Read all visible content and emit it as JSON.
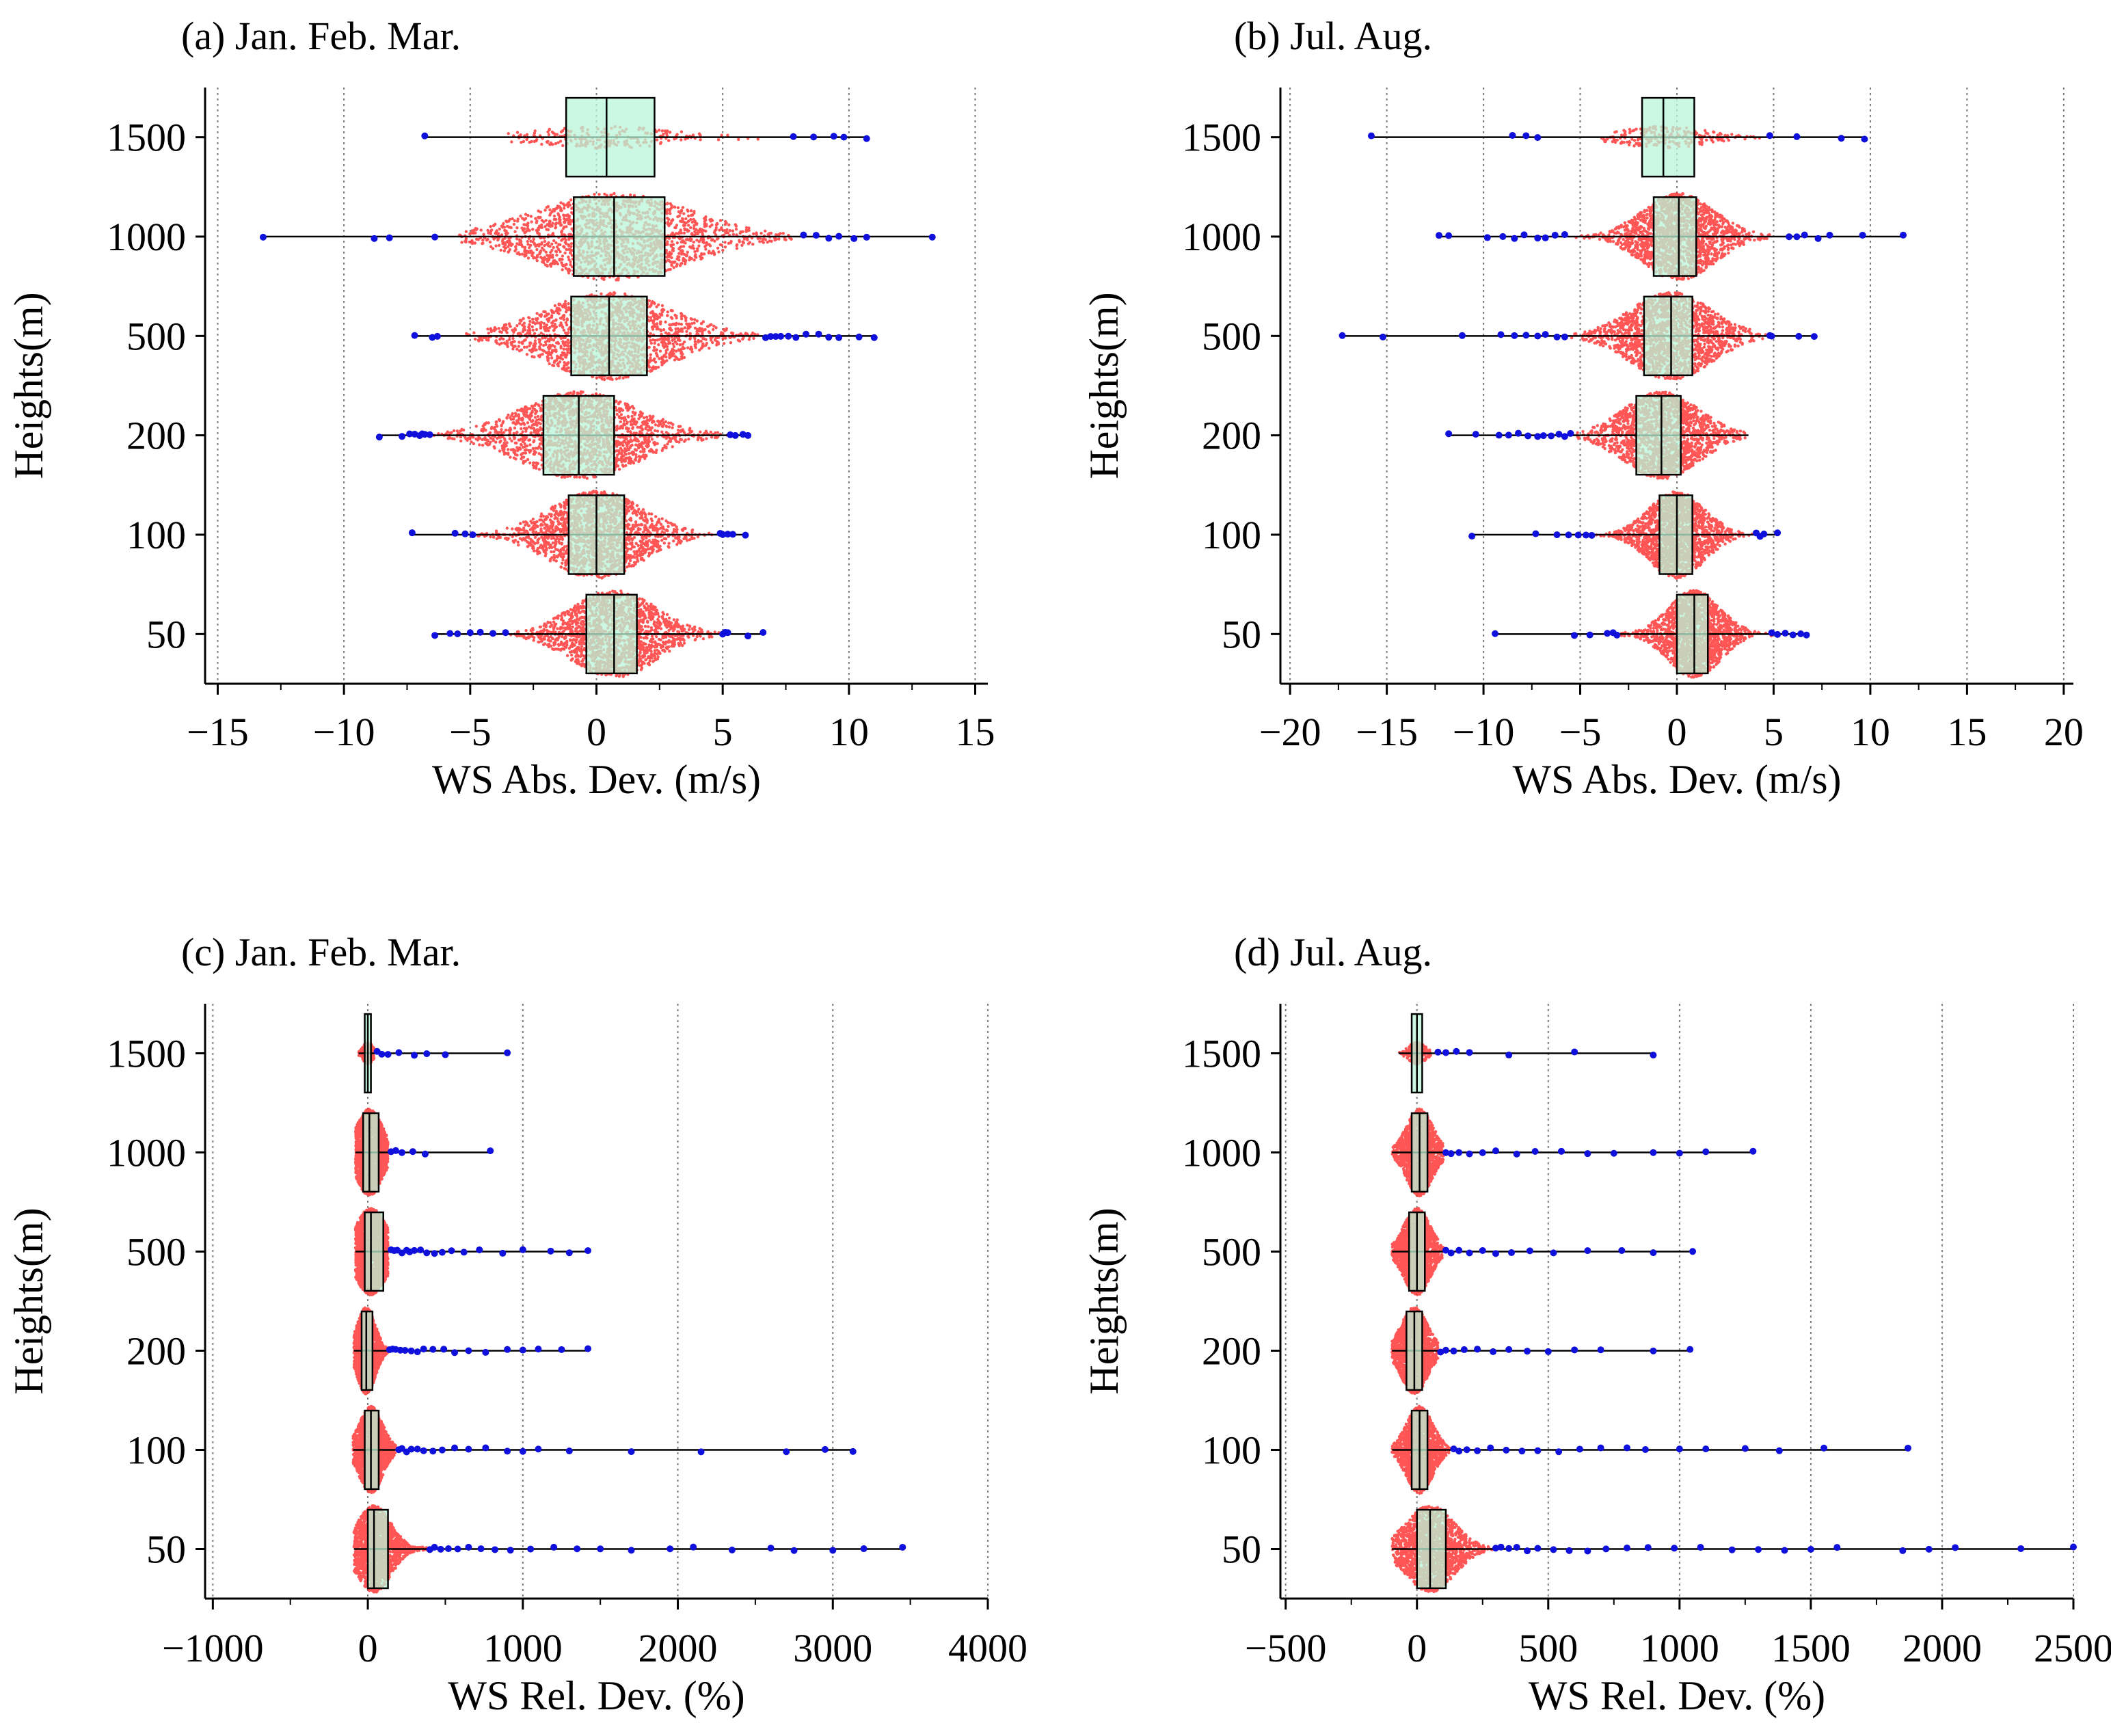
{
  "figure": {
    "y_label": "Heights(m)",
    "colors": {
      "bulk_points": "#ff2a2a",
      "outlier_points": "#1010dd",
      "box_fill": "#b8f5d8",
      "box_stroke": "#000000",
      "grid": "#7a7a7a"
    }
  },
  "chart_data": [
    {
      "id": "a",
      "type": "box-swarm",
      "orientation": "horizontal",
      "title": "(a) Jan. Feb. Mar.",
      "xlabel": "WS Abs. Dev. (m/s)",
      "ylabel": "Heights(m)",
      "xlim": [
        -15.5,
        15.5
      ],
      "xticks": [
        -15,
        -10,
        -5,
        0,
        5,
        10,
        15
      ],
      "xtick_labels": [
        "−15",
        "−10",
        "−5",
        "0",
        "5",
        "10",
        "15"
      ],
      "categories": [
        "1500",
        "1000",
        "500",
        "200",
        "100",
        "50"
      ],
      "series": [
        {
          "height": "1500",
          "min": -6.8,
          "q1": -1.2,
          "median": 0.4,
          "q3": 2.3,
          "max": 10.7,
          "bulk": [
            -3.5,
            6.5
          ],
          "density": "low",
          "outliers": [
            -6.8,
            7.8,
            8.6,
            9.4,
            9.8,
            10.7
          ]
        },
        {
          "height": "1000",
          "min": -13.2,
          "q1": -0.9,
          "median": 0.7,
          "q3": 2.7,
          "max": 13.3,
          "bulk": [
            -5.5,
            8.0
          ],
          "density": "high",
          "outliers": [
            -13.2,
            -8.8,
            -8.2,
            -6.4,
            8.2,
            8.7,
            9.2,
            9.6,
            10.2,
            10.7,
            13.3
          ]
        },
        {
          "height": "500",
          "min": -7.2,
          "q1": -1.0,
          "median": 0.5,
          "q3": 2.0,
          "max": 11.0,
          "bulk": [
            -5.2,
            6.6
          ],
          "density": "high",
          "outliers": [
            -7.2,
            -6.5,
            -6.3,
            6.7,
            6.9,
            7.1,
            7.3,
            7.6,
            7.9,
            8.3,
            8.8,
            9.2,
            9.6,
            10.4,
            11.0
          ]
        },
        {
          "height": "200",
          "min": -8.6,
          "q1": -2.1,
          "median": -0.7,
          "q3": 0.7,
          "max": 6.0,
          "bulk": [
            -6.5,
            5.2
          ],
          "density": "high",
          "outliers": [
            -8.6,
            -7.7,
            -7.4,
            -7.2,
            -7.0,
            -6.9,
            -6.8,
            -6.6,
            5.3,
            5.5,
            5.8,
            6.0
          ]
        },
        {
          "height": "100",
          "min": -7.3,
          "q1": -1.1,
          "median": 0.0,
          "q3": 1.1,
          "max": 5.9,
          "bulk": [
            -4.8,
            4.8
          ],
          "density": "high",
          "outliers": [
            -7.3,
            -5.6,
            -5.2,
            -4.9,
            4.9,
            5.0,
            5.2,
            5.4,
            5.9
          ]
        },
        {
          "height": "50",
          "min": -6.4,
          "q1": -0.4,
          "median": 0.7,
          "q3": 1.6,
          "max": 6.6,
          "bulk": [
            -3.4,
            4.9
          ],
          "density": "high",
          "outliers": [
            -6.4,
            -5.8,
            -5.5,
            -5.0,
            -4.6,
            -4.1,
            -3.6,
            5.0,
            5.1,
            5.2,
            6.0,
            6.6
          ]
        }
      ]
    },
    {
      "id": "b",
      "type": "box-swarm",
      "orientation": "horizontal",
      "title": "(b) Jul. Aug.",
      "xlabel": "WS Abs. Dev. (m/s)",
      "ylabel": "Heights(m)",
      "xlim": [
        -20.5,
        20.5
      ],
      "xticks": [
        -20,
        -15,
        -10,
        -5,
        0,
        5,
        10,
        15,
        20
      ],
      "xtick_labels": [
        "−20",
        "−15",
        "−10",
        "−5",
        "0",
        "5",
        "10",
        "15",
        "20"
      ],
      "categories": [
        "1500",
        "1000",
        "500",
        "200",
        "100",
        "50"
      ],
      "series": [
        {
          "height": "1500",
          "min": -15.8,
          "q1": -1.8,
          "median": -0.7,
          "q3": 0.9,
          "max": 9.7,
          "bulk": [
            -4.0,
            4.5
          ],
          "density": "low",
          "outliers": [
            -15.8,
            -8.5,
            -7.8,
            -7.2,
            4.8,
            6.2,
            8.5,
            9.7
          ]
        },
        {
          "height": "1000",
          "min": -12.3,
          "q1": -1.2,
          "median": 0.1,
          "q3": 1.0,
          "max": 11.7,
          "bulk": [
            -5.5,
            5.5
          ],
          "density": "high",
          "outliers": [
            -12.3,
            -11.8,
            -9.8,
            -9.0,
            -8.4,
            -7.9,
            -7.2,
            -6.8,
            -6.3,
            -5.8,
            5.8,
            6.2,
            6.6,
            7.3,
            7.9,
            9.6,
            11.7
          ]
        },
        {
          "height": "500",
          "min": -17.3,
          "q1": -1.7,
          "median": -0.3,
          "q3": 0.8,
          "max": 7.1,
          "bulk": [
            -5.5,
            4.6
          ],
          "density": "high",
          "outliers": [
            -17.3,
            -15.2,
            -11.1,
            -9.1,
            -8.4,
            -7.8,
            -7.2,
            -6.8,
            -6.2,
            -5.8,
            4.8,
            4.9,
            6.3,
            7.1
          ]
        },
        {
          "height": "200",
          "min": -11.8,
          "q1": -2.1,
          "median": -0.8,
          "q3": 0.2,
          "max": 3.7,
          "bulk": [
            -5.3,
            3.6
          ],
          "density": "high",
          "outliers": [
            -11.8,
            -10.4,
            -9.2,
            -8.7,
            -8.2,
            -7.7,
            -7.2,
            -6.9,
            -6.5,
            -6.1,
            -5.8,
            -5.5
          ]
        },
        {
          "height": "100",
          "min": -10.6,
          "q1": -0.9,
          "median": 0.0,
          "q3": 0.8,
          "max": 5.2,
          "bulk": [
            -4.2,
            4.0
          ],
          "density": "high",
          "outliers": [
            -10.6,
            -7.3,
            -6.2,
            -5.6,
            -5.1,
            -4.7,
            -4.4,
            4.1,
            4.3,
            4.5,
            5.2
          ]
        },
        {
          "height": "50",
          "min": -9.4,
          "q1": 0.0,
          "median": 0.9,
          "q3": 1.6,
          "max": 6.7,
          "bulk": [
            -2.9,
            4.9
          ],
          "density": "high",
          "outliers": [
            -9.4,
            -5.3,
            -4.5,
            -3.6,
            -3.3,
            -3.1,
            4.9,
            5.2,
            5.6,
            6.0,
            6.4,
            6.7
          ]
        }
      ]
    },
    {
      "id": "c",
      "type": "box-swarm",
      "orientation": "horizontal",
      "title": "(c) Jan. Feb. Mar.",
      "xlabel": "WS Rel. Dev. (%)",
      "ylabel": "Heights(m)",
      "xlim": [
        -1050,
        4000
      ],
      "xticks": [
        -1000,
        0,
        1000,
        2000,
        3000,
        4000
      ],
      "xtick_labels": [
        "−1000",
        "0",
        "1000",
        "2000",
        "3000",
        "4000"
      ],
      "categories": [
        "1500",
        "1000",
        "500",
        "200",
        "100",
        "50"
      ],
      "series": [
        {
          "height": "1500",
          "min": -60,
          "q1": -20,
          "median": 0,
          "q3": 20,
          "max": 900,
          "bulk": [
            -60,
            40
          ],
          "density": "low",
          "outliers": [
            60,
            90,
            130,
            200,
            300,
            380,
            500,
            900
          ]
        },
        {
          "height": "1000",
          "min": -80,
          "q1": -30,
          "median": 10,
          "q3": 70,
          "max": 790,
          "bulk": [
            -80,
            130
          ],
          "density": "high",
          "outliers": [
            150,
            180,
            220,
            290,
            370,
            790
          ]
        },
        {
          "height": "500",
          "min": -80,
          "q1": -20,
          "median": 20,
          "q3": 100,
          "max": 1420,
          "bulk": [
            -80,
            130
          ],
          "density": "high",
          "outliers": [
            150,
            170,
            190,
            220,
            250,
            270,
            300,
            340,
            380,
            430,
            480,
            540,
            620,
            720,
            870,
            1000,
            1180,
            1300,
            1420
          ]
        },
        {
          "height": "200",
          "min": -90,
          "q1": -40,
          "median": -10,
          "q3": 30,
          "max": 1420,
          "bulk": [
            -90,
            130
          ],
          "density": "high",
          "outliers": [
            140,
            160,
            180,
            210,
            240,
            280,
            320,
            360,
            420,
            490,
            560,
            650,
            760,
            900,
            1000,
            1100,
            1250,
            1420
          ]
        },
        {
          "height": "100",
          "min": -95,
          "q1": -20,
          "median": 20,
          "q3": 70,
          "max": 3130,
          "bulk": [
            -95,
            180
          ],
          "density": "high",
          "outliers": [
            200,
            220,
            250,
            280,
            320,
            360,
            420,
            480,
            560,
            650,
            760,
            900,
            1000,
            1100,
            1300,
            1700,
            2150,
            2700,
            2950,
            3130
          ]
        },
        {
          "height": "50",
          "min": -90,
          "q1": 0,
          "median": 40,
          "q3": 130,
          "max": 3450,
          "bulk": [
            -90,
            380
          ],
          "density": "high",
          "outliers": [
            400,
            430,
            470,
            520,
            580,
            650,
            730,
            820,
            920,
            1050,
            1200,
            1350,
            1500,
            1700,
            1950,
            2100,
            2350,
            2600,
            2750,
            3000,
            3200,
            3450
          ]
        }
      ]
    },
    {
      "id": "d",
      "type": "box-swarm",
      "orientation": "horizontal",
      "title": "(d) Jul. Aug.",
      "xlabel": "WS Rel. Dev. (%)",
      "ylabel": "Heights(m)",
      "xlim": [
        -520,
        2500
      ],
      "xticks": [
        -500,
        0,
        500,
        1000,
        1500,
        2000,
        2500
      ],
      "xtick_labels": [
        "−500",
        "0",
        "500",
        "1000",
        "1500",
        "2000",
        "2500"
      ],
      "categories": [
        "1500",
        "1000",
        "500",
        "200",
        "100",
        "50"
      ],
      "series": [
        {
          "height": "1500",
          "min": -70,
          "q1": -20,
          "median": 0,
          "q3": 20,
          "max": 900,
          "bulk": [
            -70,
            60
          ],
          "density": "low",
          "outliers": [
            80,
            110,
            150,
            200,
            350,
            600,
            900
          ]
        },
        {
          "height": "1000",
          "min": -95,
          "q1": -20,
          "median": 10,
          "q3": 40,
          "max": 1280,
          "bulk": [
            -95,
            100
          ],
          "density": "high",
          "outliers": [
            110,
            130,
            160,
            200,
            250,
            300,
            380,
            450,
            550,
            650,
            750,
            900,
            1000,
            1100,
            1280
          ]
        },
        {
          "height": "500",
          "min": -95,
          "q1": -30,
          "median": 0,
          "q3": 30,
          "max": 1050,
          "bulk": [
            -95,
            100
          ],
          "density": "high",
          "outliers": [
            110,
            130,
            160,
            200,
            250,
            300,
            360,
            430,
            520,
            650,
            780,
            900,
            1050
          ]
        },
        {
          "height": "200",
          "min": -95,
          "q1": -40,
          "median": -10,
          "q3": 20,
          "max": 1040,
          "bulk": [
            -95,
            80
          ],
          "density": "high",
          "outliers": [
            90,
            110,
            140,
            180,
            230,
            290,
            350,
            420,
            500,
            600,
            700,
            900,
            1040
          ]
        },
        {
          "height": "100",
          "min": -95,
          "q1": -20,
          "median": 10,
          "q3": 40,
          "max": 1870,
          "bulk": [
            -95,
            130
          ],
          "density": "high",
          "outliers": [
            140,
            160,
            190,
            230,
            280,
            340,
            400,
            460,
            540,
            620,
            700,
            800,
            870,
            1000,
            1100,
            1250,
            1380,
            1550,
            1870
          ]
        },
        {
          "height": "50",
          "min": -95,
          "q1": 0,
          "median": 50,
          "q3": 110,
          "max": 2500,
          "bulk": [
            -95,
            290
          ],
          "density": "high",
          "outliers": [
            300,
            320,
            350,
            380,
            420,
            460,
            520,
            580,
            650,
            720,
            800,
            880,
            980,
            1080,
            1200,
            1300,
            1400,
            1500,
            1600,
            1850,
            1950,
            2050,
            2300,
            2500
          ]
        }
      ]
    }
  ]
}
